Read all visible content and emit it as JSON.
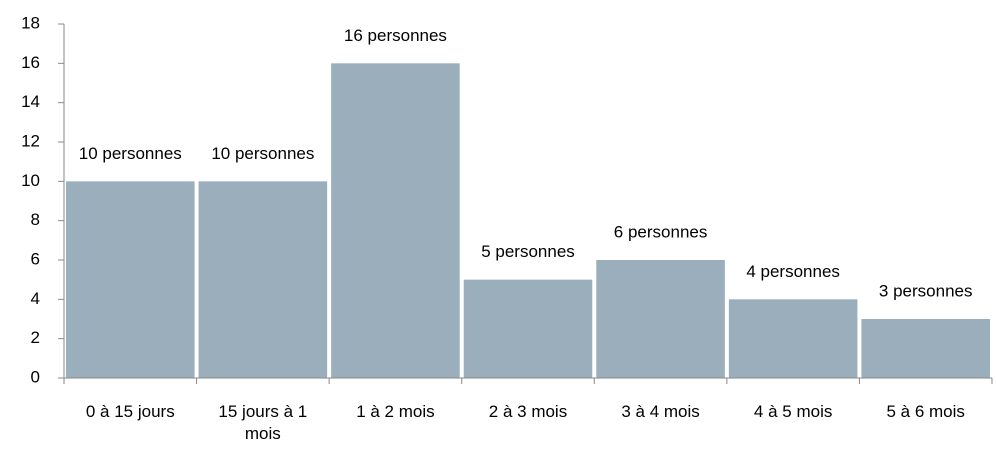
{
  "chart_data": {
    "type": "bar",
    "categories": [
      "0 à 15 jours",
      "15 jours à 1 mois",
      "1 à 2 mois",
      "2 à 3 mois",
      "3 à 4 mois",
      "4 à 5 mois",
      "5 à 6 mois"
    ],
    "values": [
      10,
      10,
      16,
      5,
      6,
      4,
      3
    ],
    "value_labels": [
      "10 personnes",
      "10 personnes",
      "16 personnes",
      "5 personnes",
      "6 personnes",
      "4 personnes",
      "3 personnes"
    ],
    "color": "#9aafbb",
    "ylim": [
      0,
      18
    ],
    "yticks": [
      0,
      2,
      4,
      6,
      8,
      10,
      12,
      14,
      16,
      18
    ]
  }
}
